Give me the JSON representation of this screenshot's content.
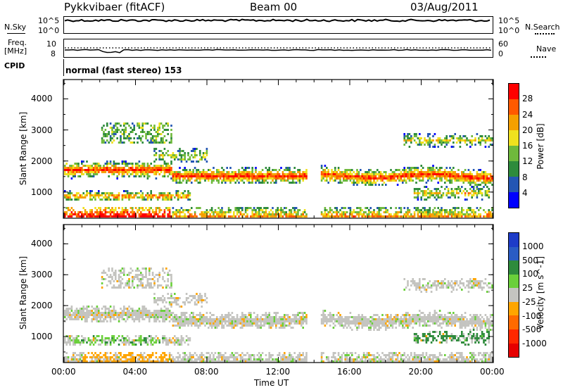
{
  "header": {
    "title": "Pykkvibaer (fitACF)",
    "beam": "Beam 00",
    "date": "03/Aug/2011"
  },
  "nsky_panel": {
    "left_label": "N.Sky",
    "right_label": "N.Search",
    "left_ticks": [
      "10^5",
      "10^0"
    ],
    "right_ticks": [
      "10^5",
      "10^0"
    ]
  },
  "freq_panel": {
    "left_label_line1": "Freq.",
    "left_label_line2": "[MHz]",
    "right_label": "Nave",
    "left_ticks": [
      "10",
      "8"
    ],
    "right_ticks": [
      "60",
      "0"
    ]
  },
  "cpid_panel": {
    "label": "CPID",
    "text": "normal (fast stereo) 153"
  },
  "chart_data": [
    {
      "type": "heatmap",
      "name": "power",
      "ylabel": "Slant Range [km]",
      "ylim": [
        180,
        4600
      ],
      "yticks": [
        1000,
        2000,
        3000,
        4000
      ],
      "xlim": [
        0,
        24
      ],
      "colorbar": {
        "label": "Power [dB]",
        "ticks": [
          "4",
          "8",
          "12",
          "16",
          "20",
          "24",
          "28"
        ],
        "colors": [
          "#0000ff",
          "#2456b4",
          "#2e8b3c",
          "#6fb93c",
          "#f0e11e",
          "#f5a000",
          "#ff5a00",
          "#ff0000"
        ]
      },
      "data_gap_hours": [
        13.6,
        14.3
      ]
    },
    {
      "type": "heatmap",
      "name": "velocity",
      "ylabel": "Slant Range [km]",
      "ylim": [
        180,
        4600
      ],
      "yticks": [
        1000,
        2000,
        3000,
        4000
      ],
      "xlim": [
        0,
        24
      ],
      "colorbar": {
        "label": "Velocity [m s^-1]",
        "ticks": [
          "1000",
          "500",
          "100",
          "25",
          "-25",
          "-100",
          "-500",
          "-1000"
        ],
        "colors": [
          "#1e3cc8",
          "#2a5cc4",
          "#2e8b3c",
          "#6ad03a",
          "#c4c4c0",
          "#ffa500",
          "#ff6a00",
          "#ff2800",
          "#e60000"
        ]
      },
      "data_gap_hours": [
        13.6,
        14.3
      ]
    }
  ],
  "time_axis": {
    "ticks": [
      "00:00",
      "04:00",
      "08:00",
      "12:00",
      "16:00",
      "20:00",
      "00:00"
    ],
    "label": "Time UT"
  }
}
